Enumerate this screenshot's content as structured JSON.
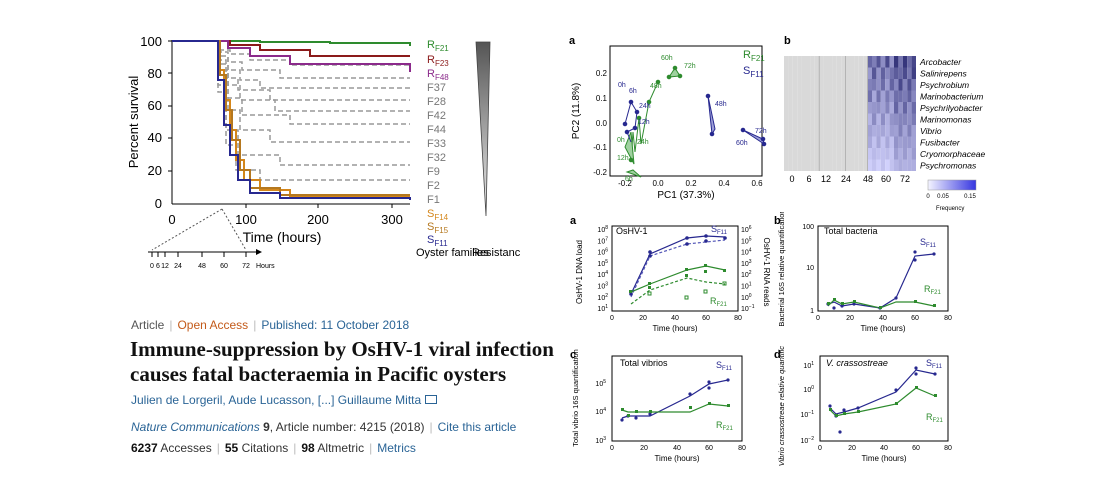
{
  "survival": {
    "ylabel": "Percent survival",
    "xlabel": "Time (hours)",
    "yticks": [
      "100",
      "80",
      "60",
      "40",
      "20",
      "0"
    ],
    "xticks": [
      "0",
      "100",
      "200",
      "300"
    ],
    "families": [
      "R",
      "R",
      "R",
      "F37",
      "F28",
      "F42",
      "F44",
      "F33",
      "F32",
      "F9",
      "F2",
      "F1",
      "S",
      "S",
      "S"
    ],
    "family_subs": [
      "F21",
      "F23",
      "F48",
      "",
      "",
      "",
      "",
      "",
      "",
      "",
      "",
      "",
      "F14",
      "F15",
      "F11"
    ],
    "oyster_families": "Oyster families",
    "resistance": "Resistance",
    "inset_ticks": [
      "0",
      "6",
      "12",
      "24",
      "48",
      "60",
      "72"
    ],
    "inset_unit": "Hours"
  },
  "article": {
    "type": "Article",
    "access": "Open Access",
    "published": "Published: 11 October 2018",
    "title_line1": "Immune-suppression by OsHV-1 viral infection",
    "title_line2": "causes fatal bacteraemia in Pacific oysters",
    "authors": "Julien de Lorgeril, Aude Lucasson, [...] Guillaume Mitta",
    "journal": "Nature Communications",
    "volume": "9",
    "article_number": ", Article number: 4215 (2018)",
    "cite": "Cite this article",
    "accesses_n": "6237",
    "accesses": "Accesses",
    "citations_n": "55",
    "citations": "Citations",
    "altmetric_n": "98",
    "altmetric": "Altmetric",
    "metrics": "Metrics"
  },
  "pca": {
    "panel": "a",
    "xlabel": "PC1 (37.3%)",
    "ylabel": "PC2 (11.8%)",
    "xticks": [
      "-0.2",
      "0.0",
      "0.2",
      "0.4",
      "0.6"
    ],
    "yticks": [
      "0.2",
      "0.1",
      "0.0",
      "-0.1",
      "-0.2"
    ],
    "legend_r": "R",
    "legend_r_sub": "F21",
    "legend_s": "S",
    "legend_s_sub": "F11",
    "point_labels": [
      "60h",
      "72h",
      "0h",
      "6h",
      "24h",
      "12h",
      "48h",
      "48h",
      "72h",
      "60h",
      "0h",
      "12h",
      "24h",
      "6h"
    ]
  },
  "heatmap": {
    "panel": "b",
    "genera": [
      "Arcobacter",
      "Salinirepens",
      "Psychrobium",
      "Marinobacterium",
      "Psychrilyobacter",
      "Marinomonas",
      "Vibrio",
      "Fusibacter",
      "Cryomorphaceae",
      "Psychromonas"
    ],
    "xticks": [
      "0",
      "6",
      "12",
      "24",
      "48",
      "60",
      "72"
    ],
    "scale_ticks": [
      "0",
      "0.05",
      "0.15"
    ],
    "scale_label": "Frequency"
  },
  "panels": {
    "a_label": "a",
    "a_title": "OsHV-1",
    "a_ylabel_left": "OsHV-1 DNA load",
    "a_ylabel_right": "OsHV-1 RNA reads",
    "b_label": "b",
    "b_title": "Total bacteria",
    "b_ylabel": "Bacterial 16S relative quantification",
    "c_label": "c",
    "c_title": "Total vibrios",
    "c_ylabel": "Total vibrio 16S quantification",
    "d_label": "d",
    "d_title": "V. crassostreae",
    "d_ylabel": "Vibrio crassostreae relative quantification",
    "xlabel": "Time (hours)",
    "xticks": [
      "0",
      "20",
      "40",
      "60",
      "80"
    ],
    "s_label": "S",
    "s_sub": "F11",
    "r_label": "R",
    "r_sub": "F21",
    "a_yticks_left": [
      "10",
      "10",
      "10",
      "10",
      "10",
      "10",
      "10",
      "10"
    ],
    "a_yticks_left_exp": [
      "8",
      "7",
      "6",
      "5",
      "4",
      "3",
      "2",
      "1"
    ],
    "a_yticks_right": [
      "10",
      "10",
      "10",
      "10",
      "10",
      "10",
      "10",
      "10"
    ],
    "a_yticks_right_exp": [
      "6",
      "5",
      "4",
      "3",
      "2",
      "1",
      "0",
      "−1"
    ],
    "b_yticks": [
      "100",
      "10",
      "1"
    ],
    "c_yticks": [
      "10",
      "10",
      "10"
    ],
    "c_yticks_exp": [
      "5",
      "4",
      "3"
    ],
    "d_yticks": [
      "10",
      "10",
      "10",
      "10",
      "10"
    ],
    "d_yticks_exp": [
      "1",
      "0",
      "−1",
      "−2",
      ""
    ]
  },
  "colors": {
    "green": "#2e8b2e",
    "darkred": "#8b1a1a",
    "purple": "#8b2a8b",
    "orange": "#d4861a",
    "navy": "#27288f",
    "blue": "#3a40a0",
    "gray": "#999999"
  }
}
